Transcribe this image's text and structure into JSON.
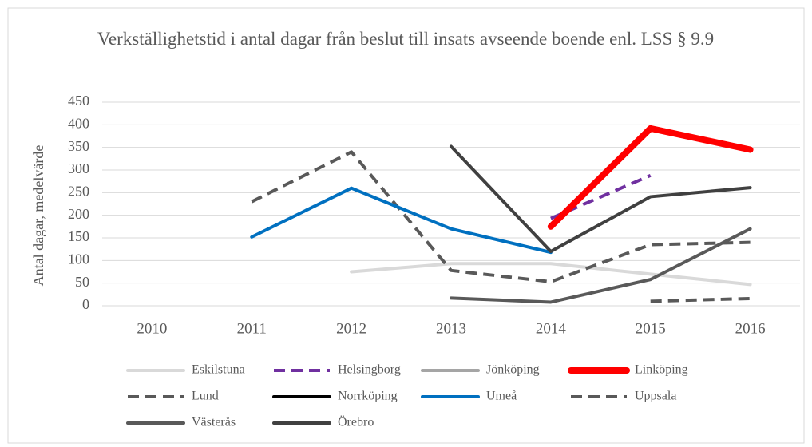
{
  "chart_data": {
    "type": "line",
    "title": "Verkställighetstid i antal dagar från beslut till insats avseende boende enl. LSS § 9.9",
    "y_label": "Antal dagar, medelvärde",
    "categories": [
      "2010",
      "2011",
      "2012",
      "2013",
      "2014",
      "2015",
      "2016"
    ],
    "ylim": [
      0,
      450
    ],
    "yticks": [
      0,
      50,
      100,
      150,
      200,
      250,
      300,
      350,
      400,
      450
    ],
    "grid": true,
    "legend": "bottom",
    "series": [
      {
        "name": "Eskilstuna",
        "color": "#d9d9d9",
        "dashed": false,
        "values": [
          null,
          null,
          75,
          93,
          93,
          70,
          47
        ]
      },
      {
        "name": "Helsingborg",
        "color": "#7030a0",
        "dashed": true,
        "values": [
          null,
          null,
          null,
          null,
          193,
          288,
          null
        ]
      },
      {
        "name": "Jönköping",
        "color": "#a5a5a5",
        "dashed": false,
        "values": [
          null,
          null,
          null,
          null,
          null,
          null,
          null
        ]
      },
      {
        "name": "Linköping",
        "color": "#ff0000",
        "dashed": false,
        "thick": true,
        "values": [
          null,
          null,
          null,
          null,
          175,
          392,
          345
        ]
      },
      {
        "name": "Lund",
        "color": "#595959",
        "dashed": true,
        "values": [
          null,
          230,
          340,
          78,
          53,
          135,
          140
        ]
      },
      {
        "name": "Norrköping",
        "color": "#000000",
        "dashed": false,
        "values": [
          null,
          null,
          null,
          null,
          null,
          null,
          null
        ]
      },
      {
        "name": "Umeå",
        "color": "#0070c0",
        "dashed": false,
        "values": [
          null,
          152,
          260,
          170,
          118,
          null,
          null
        ]
      },
      {
        "name": "Uppsala",
        "color": "#595959",
        "dashed": true,
        "values": [
          null,
          null,
          null,
          null,
          null,
          10,
          16
        ]
      },
      {
        "name": "Västerås",
        "color": "#595959",
        "dashed": false,
        "values": [
          null,
          null,
          null,
          17,
          8,
          58,
          170
        ]
      },
      {
        "name": "Örebro",
        "color": "#404040",
        "dashed": false,
        "values": [
          null,
          null,
          null,
          352,
          120,
          241,
          261
        ]
      }
    ]
  }
}
